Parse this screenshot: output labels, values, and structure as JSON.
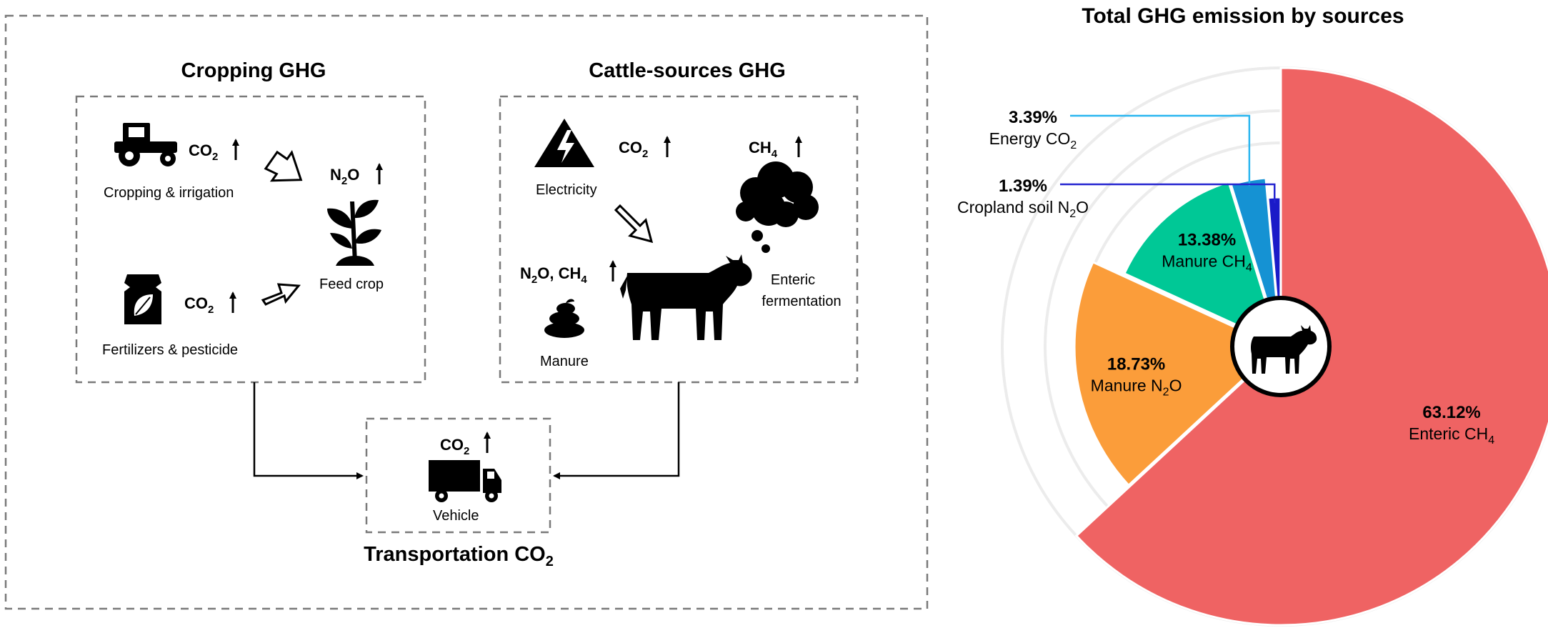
{
  "left_panel": {
    "cropping": {
      "title": "Cropping GHG",
      "tractor_gas_main": "CO",
      "tractor_gas_sub": "2",
      "tractor_caption": "Cropping &  irrigation",
      "plant_gas_main": "N",
      "plant_gas_sub": "2",
      "plant_gas_tail": "O",
      "plant_caption": "Feed crop",
      "fert_gas_main": "CO",
      "fert_gas_sub": "2",
      "fert_caption": "Fertilizers & pesticide"
    },
    "cattle": {
      "title": "Cattle-sources GHG",
      "elec_gas_main": "CO",
      "elec_gas_sub": "2",
      "elec_caption": "Electricity",
      "cloud_gas_main": "CH",
      "cloud_gas_sub": "4",
      "enteric_caption_1": "Enteric",
      "enteric_caption_2": "fermentation",
      "manure_gas": {
        "a": "N",
        "a_sub": "2",
        "b": "O, CH",
        "b_sub": "4"
      },
      "manure_caption": "Manure"
    },
    "transport": {
      "gas_main": "CO",
      "gas_sub": "2",
      "vehicle_caption": "Vehicle",
      "title_main": "Transportation CO",
      "title_sub": "2"
    }
  },
  "chart_data": {
    "type": "pie",
    "title": "Total GHG emission by sources",
    "slices": [
      {
        "label": "Enteric CH",
        "label_sub": "4",
        "value": 63.12,
        "value_label": "63.12%",
        "color": "#ef6363"
      },
      {
        "label": "Manure N",
        "label_sub": "2",
        "label_tail": "O",
        "value": 18.73,
        "value_label": "18.73%",
        "color": "#fb9d3a"
      },
      {
        "label": "Manure CH",
        "label_sub": "4",
        "value": 13.38,
        "value_label": "13.38%",
        "color": "#00c896"
      },
      {
        "label": "Energy CO",
        "label_sub": "2",
        "value": 3.39,
        "value_label": "3.39%",
        "color": "#1592d3"
      },
      {
        "label": "Cropland soil N",
        "label_sub": "2",
        "label_tail": "O",
        "value": 1.39,
        "value_label": "1.39%",
        "color": "#1b1bc8"
      }
    ],
    "leader_colors": {
      "energy": "#29b6f0",
      "cropland": "#2424d0"
    },
    "center_icon": "cow-icon"
  }
}
